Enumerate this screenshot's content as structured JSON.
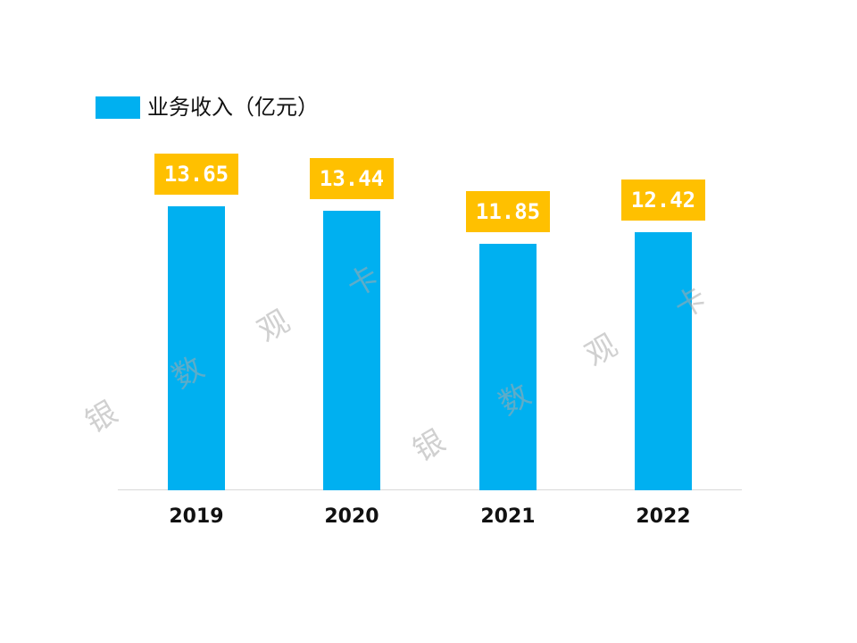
{
  "chart_data": {
    "type": "bar",
    "categories": [
      "2019",
      "2020",
      "2021",
      "2022"
    ],
    "series": [
      {
        "name": "业务收入（亿元）",
        "values": [
          13.65,
          13.44,
          11.85,
          12.42
        ]
      }
    ],
    "value_labels": [
      "13.65",
      "13.44",
      "11.85",
      "12.42"
    ],
    "ylim": [
      0,
      15
    ],
    "grid": false,
    "legend": "top-left",
    "colors": {
      "bar": "#00B0F0",
      "label_bg": "#FFC000"
    }
  },
  "watermark": [
    "银",
    "数",
    "观",
    "卡",
    "银",
    "数",
    "观",
    "卡"
  ]
}
